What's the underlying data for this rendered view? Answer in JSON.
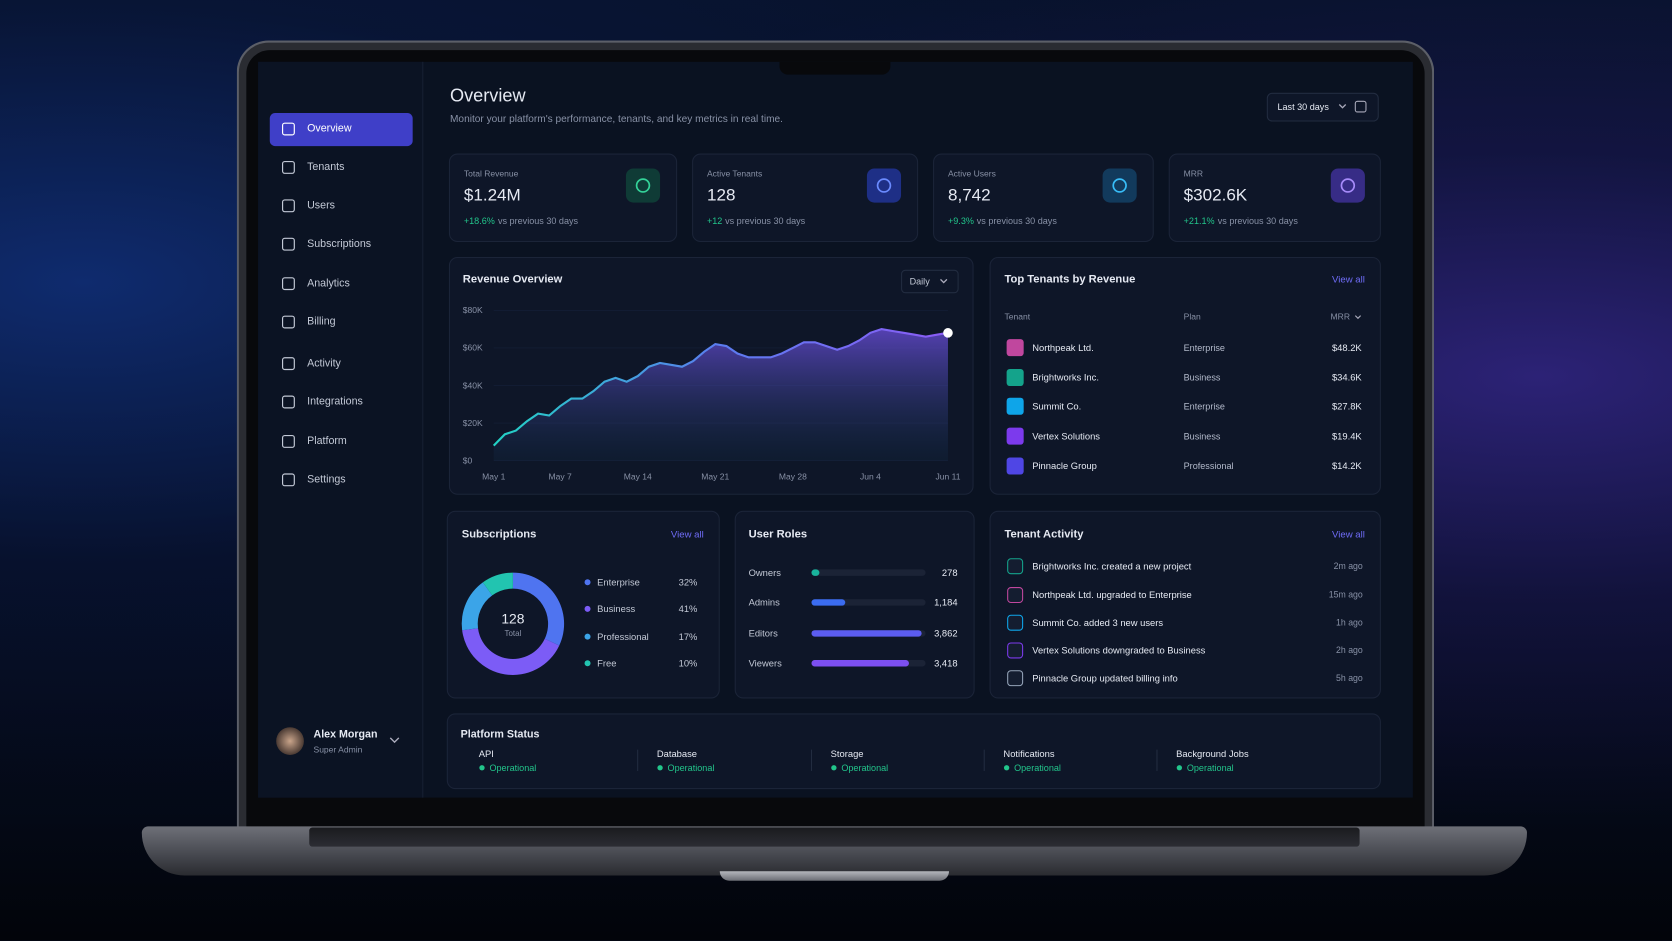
{
  "sidebar": {
    "nav": [
      "Overview",
      "Tenants",
      "Users",
      "Subscriptions",
      "Analytics",
      "Billing",
      "Activity",
      "Integrations",
      "Platform",
      "Settings"
    ],
    "user": {
      "name": "Alex Morgan",
      "role": "Super Admin"
    }
  },
  "header": {
    "title": "Overview",
    "subtitle": "Monitor your platform's performance, tenants, and key metrics in real time.",
    "range": "Last 30 days"
  },
  "kpis": [
    {
      "label": "Total Revenue",
      "value": "$1.24M",
      "change": "+18.6%",
      "note": "vs previous 30 days"
    },
    {
      "label": "Active Tenants",
      "value": "128",
      "change": "+12",
      "note": "vs previous 30 days"
    },
    {
      "label": "Active Users",
      "value": "8,742",
      "change": "+9.3%",
      "note": "vs previous 30 days"
    },
    {
      "label": "MRR",
      "value": "$302.6K",
      "change": "+21.1%",
      "note": "vs previous 30 days"
    }
  ],
  "revenue": {
    "title": "Revenue Overview",
    "granularity": "Daily",
    "chart": {
      "type": "area",
      "categories": [
        "May 1",
        null,
        null,
        null,
        null,
        null,
        "May 7",
        null,
        null,
        null,
        null,
        null,
        null,
        "May 14",
        null,
        null,
        null,
        null,
        null,
        null,
        "May 21",
        null,
        null,
        null,
        null,
        null,
        null,
        "May 28",
        null,
        null,
        null,
        null,
        null,
        null,
        "Jun 4",
        null,
        null,
        null,
        null,
        null,
        null,
        "Jun 11"
      ],
      "values": [
        8000,
        14000,
        16000,
        21000,
        25000,
        24000,
        29000,
        33000,
        33000,
        37000,
        42000,
        44000,
        42000,
        45000,
        50000,
        52000,
        51000,
        50000,
        53000,
        58000,
        62000,
        61000,
        57000,
        55000,
        55000,
        55000,
        57000,
        60000,
        63000,
        63000,
        61000,
        59000,
        61000,
        64000,
        68000,
        70000,
        69000,
        68000,
        67000,
        66000,
        67000,
        68000
      ],
      "ylim": [
        0,
        80000
      ],
      "yticks": [
        {
          "value": 0,
          "label": "$0"
        },
        {
          "value": 20000,
          "label": "$20K"
        },
        {
          "value": 40000,
          "label": "$40K"
        },
        {
          "value": 60000,
          "label": "$60K"
        },
        {
          "value": 80000,
          "label": "$80K"
        }
      ]
    }
  },
  "top_tenants": {
    "title": "Top Tenants by Revenue",
    "view_all": "View all",
    "columns": [
      "Tenant",
      "Plan",
      "MRR"
    ],
    "rows": [
      [
        "Northpeak Ltd.",
        "Enterprise",
        "$48.2K"
      ],
      [
        "Brightworks Inc.",
        "Business",
        "$34.6K"
      ],
      [
        "Summit Co.",
        "Enterprise",
        "$27.8K"
      ],
      [
        "Vertex Solutions",
        "Business",
        "$19.4K"
      ],
      [
        "Pinnacle Group",
        "Professional",
        "$14.2K"
      ]
    ]
  },
  "subscriptions": {
    "title": "Subscriptions",
    "view_all": "View all",
    "total": "128",
    "total_label": "Total",
    "chart": {
      "type": "donut",
      "categories": [
        "Enterprise",
        "Business",
        "Professional",
        "Free"
      ],
      "values": [
        32,
        41,
        17,
        10
      ],
      "value_labels": [
        "32%",
        "41%",
        "17%",
        "10%"
      ],
      "colors": [
        "#4f74f0",
        "#7c5cf6",
        "#3ba4e8",
        "#22c4b0"
      ]
    }
  },
  "user_roles": {
    "title": "User Roles",
    "chart": {
      "type": "bar",
      "categories": [
        "Owners",
        "Admins",
        "Editors",
        "Viewers"
      ],
      "values": [
        278,
        1184,
        3862,
        3418
      ],
      "value_labels": [
        "278",
        "1,184",
        "3,862",
        "3,418"
      ],
      "colors": [
        "#19b39c",
        "#3b6cf0",
        "#5b5cf0",
        "#7c4ff0"
      ],
      "xlim": [
        0,
        4000
      ]
    }
  },
  "tenant_activity": {
    "title": "Tenant Activity",
    "view_all": "View all",
    "items": [
      {
        "text": "Brightworks Inc. created a new project",
        "time": "2m ago"
      },
      {
        "text": "Northpeak Ltd. upgraded to Enterprise",
        "time": "15m ago"
      },
      {
        "text": "Summit Co. added 3 new users",
        "time": "1h ago"
      },
      {
        "text": "Vertex Solutions downgraded to Business",
        "time": "2h ago"
      },
      {
        "text": "Pinnacle Group updated billing info",
        "time": "5h ago"
      }
    ]
  },
  "platform_status": {
    "title": "Platform Status",
    "items": [
      {
        "name": "API",
        "status": "Operational"
      },
      {
        "name": "Database",
        "status": "Operational"
      },
      {
        "name": "Storage",
        "status": "Operational"
      },
      {
        "name": "Notifications",
        "status": "Operational"
      },
      {
        "name": "Background Jobs",
        "status": "Operational"
      }
    ]
  }
}
